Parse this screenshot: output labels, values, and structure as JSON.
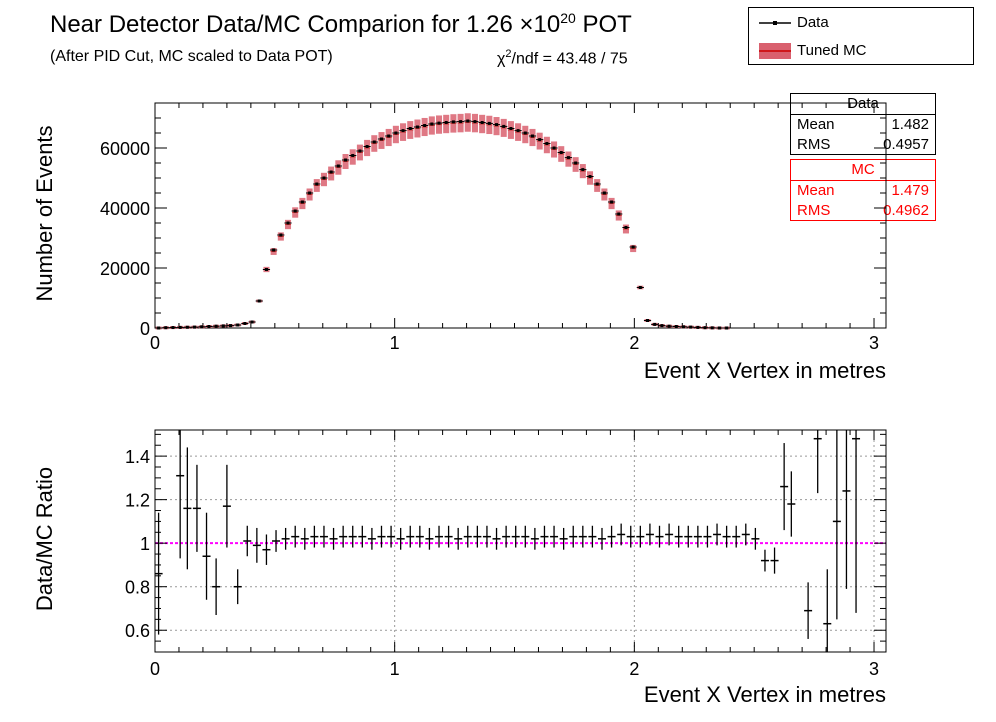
{
  "title_main": "Near Detector Data/MC Comparion for 1.26 ×10",
  "title_exp": "20",
  "title_end": " POT",
  "subtitle": "(After PID Cut, MC scaled to Data POT)",
  "chi2_prefix": "χ",
  "chi2_exp": "2",
  "chi2_rest": "/ndf = 43.48 / 75",
  "legend": {
    "data_label": "Data",
    "mc_label": "Tuned MC"
  },
  "stats_data": {
    "header": "Data",
    "mean_label": "Mean",
    "mean": "1.482",
    "rms_label": "RMS",
    "rms": "0.4957"
  },
  "stats_mc": {
    "header": "MC",
    "mean_label": "Mean",
    "mean": "1.479",
    "rms_label": "RMS",
    "rms": "0.4962"
  },
  "colors": {
    "data": "#000000",
    "mc": "#cc3333",
    "mc_fill": "#d9606e",
    "ratio_line": "#ff00ff"
  },
  "chart_data": [
    {
      "type": "line",
      "name": "top",
      "xlabel": "Event X Vertex in metres",
      "ylabel": "Number of Events",
      "xlim": [
        0,
        3.05
      ],
      "ylim": [
        0,
        75000
      ],
      "x_ticks": [
        "0",
        "1",
        "2",
        "3"
      ],
      "y_ticks": [
        "0",
        "20000",
        "40000",
        "60000"
      ],
      "bin_width": 0.03,
      "x_start": 0.015,
      "series": [
        {
          "name": "Data",
          "values": [
            0,
            100,
            150,
            200,
            250,
            300,
            400,
            500,
            600,
            700,
            800,
            1000,
            1500,
            2000,
            9000,
            19500,
            26000,
            31000,
            35000,
            39000,
            42000,
            45000,
            48000,
            50000,
            52000,
            54000,
            56000,
            57500,
            59000,
            60500,
            62000,
            63000,
            64000,
            65000,
            65800,
            66500,
            67000,
            67500,
            68000,
            68300,
            68500,
            68700,
            68800,
            69000,
            68800,
            68500,
            68200,
            67800,
            67200,
            66500,
            65800,
            65000,
            64000,
            62800,
            61500,
            60000,
            58500,
            56800,
            55000,
            52800,
            50500,
            48000,
            45000,
            42000,
            38000,
            33500,
            27000,
            13500,
            2500,
            1200,
            800,
            600,
            500,
            400,
            300,
            200,
            100,
            50,
            0,
            0
          ]
        },
        {
          "name": "Tuned MC",
          "values": [
            0,
            100,
            150,
            200,
            250,
            300,
            400,
            500,
            600,
            700,
            800,
            1000,
            1500,
            2000,
            9000,
            19500,
            25500,
            30500,
            34500,
            38500,
            41500,
            44500,
            47500,
            49500,
            51500,
            53500,
            55500,
            57000,
            58500,
            60000,
            61500,
            62500,
            63500,
            64500,
            65300,
            66000,
            66500,
            67000,
            67500,
            67800,
            68000,
            68200,
            68300,
            68500,
            68300,
            68000,
            67700,
            67300,
            66700,
            66000,
            65300,
            64500,
            63500,
            62300,
            61000,
            59500,
            58000,
            56300,
            54500,
            52300,
            50000,
            47500,
            44500,
            41500,
            37500,
            33000,
            26500,
            13500,
            2500,
            1200,
            800,
            600,
            500,
            400,
            300,
            200,
            100,
            50,
            0,
            0
          ]
        }
      ]
    },
    {
      "type": "scatter",
      "name": "ratio",
      "xlabel": "Event X Vertex in metres",
      "ylabel": "Data/MC Ratio",
      "xlim": [
        0,
        3.05
      ],
      "ylim": [
        0.5,
        1.52
      ],
      "x_ticks": [
        "0",
        "1",
        "2",
        "3"
      ],
      "y_ticks": [
        "0.6",
        "0.8",
        "1",
        "1.2",
        "1.4"
      ],
      "reference_line": 1.0,
      "series": [
        {
          "name": "ratio",
          "points": [
            [
              0.015,
              0.86,
              0.28
            ],
            [
              0.105,
              1.31,
              0.38
            ],
            [
              0.135,
              1.16,
              0.28
            ],
            [
              0.175,
              1.16,
              0.2
            ],
            [
              0.215,
              0.94,
              0.2
            ],
            [
              0.255,
              0.8,
              0.13
            ],
            [
              0.3,
              1.17,
              0.19
            ],
            [
              0.345,
              0.8,
              0.08
            ],
            [
              0.385,
              1.01,
              0.07
            ],
            [
              0.425,
              0.99,
              0.08
            ],
            [
              0.465,
              0.97,
              0.07
            ],
            [
              0.505,
              1.01,
              0.05
            ],
            [
              0.545,
              1.02,
              0.05
            ],
            [
              0.585,
              1.03,
              0.05
            ],
            [
              0.625,
              1.02,
              0.05
            ],
            [
              0.665,
              1.03,
              0.05
            ],
            [
              0.705,
              1.03,
              0.05
            ],
            [
              0.745,
              1.02,
              0.05
            ],
            [
              0.785,
              1.03,
              0.05
            ],
            [
              0.825,
              1.03,
              0.05
            ],
            [
              0.865,
              1.03,
              0.05
            ],
            [
              0.905,
              1.02,
              0.05
            ],
            [
              0.945,
              1.03,
              0.05
            ],
            [
              0.985,
              1.03,
              0.05
            ],
            [
              1.025,
              1.02,
              0.05
            ],
            [
              1.065,
              1.03,
              0.05
            ],
            [
              1.105,
              1.03,
              0.05
            ],
            [
              1.145,
              1.02,
              0.05
            ],
            [
              1.185,
              1.03,
              0.05
            ],
            [
              1.225,
              1.03,
              0.05
            ],
            [
              1.265,
              1.02,
              0.05
            ],
            [
              1.305,
              1.03,
              0.05
            ],
            [
              1.345,
              1.03,
              0.05
            ],
            [
              1.385,
              1.03,
              0.05
            ],
            [
              1.425,
              1.02,
              0.05
            ],
            [
              1.465,
              1.03,
              0.05
            ],
            [
              1.505,
              1.03,
              0.05
            ],
            [
              1.545,
              1.03,
              0.05
            ],
            [
              1.585,
              1.02,
              0.05
            ],
            [
              1.625,
              1.03,
              0.05
            ],
            [
              1.665,
              1.03,
              0.05
            ],
            [
              1.705,
              1.02,
              0.05
            ],
            [
              1.745,
              1.03,
              0.05
            ],
            [
              1.785,
              1.03,
              0.05
            ],
            [
              1.825,
              1.03,
              0.05
            ],
            [
              1.865,
              1.02,
              0.05
            ],
            [
              1.905,
              1.03,
              0.05
            ],
            [
              1.945,
              1.04,
              0.05
            ],
            [
              1.985,
              1.03,
              0.05
            ],
            [
              2.025,
              1.03,
              0.05
            ],
            [
              2.065,
              1.04,
              0.05
            ],
            [
              2.105,
              1.03,
              0.05
            ],
            [
              2.145,
              1.04,
              0.05
            ],
            [
              2.185,
              1.03,
              0.05
            ],
            [
              2.225,
              1.03,
              0.05
            ],
            [
              2.265,
              1.03,
              0.05
            ],
            [
              2.305,
              1.03,
              0.05
            ],
            [
              2.345,
              1.04,
              0.05
            ],
            [
              2.385,
              1.03,
              0.05
            ],
            [
              2.425,
              1.03,
              0.05
            ],
            [
              2.465,
              1.04,
              0.05
            ],
            [
              2.505,
              1.02,
              0.05
            ],
            [
              2.545,
              0.92,
              0.05
            ],
            [
              2.585,
              0.92,
              0.06
            ],
            [
              2.625,
              1.26,
              0.2
            ],
            [
              2.655,
              1.18,
              0.15
            ],
            [
              2.725,
              0.69,
              0.13
            ],
            [
              2.765,
              1.48,
              0.25
            ],
            [
              2.805,
              0.63,
              0.25
            ],
            [
              2.845,
              1.1,
              0.45
            ],
            [
              2.885,
              1.24,
              0.45
            ],
            [
              2.925,
              1.48,
              0.8
            ]
          ]
        }
      ]
    }
  ]
}
